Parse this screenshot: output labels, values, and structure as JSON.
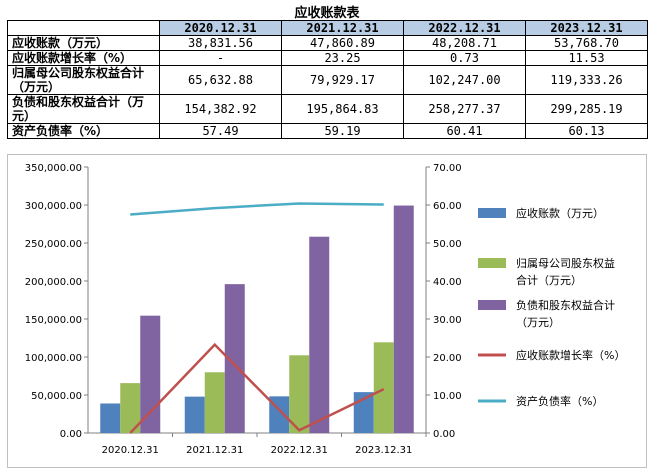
{
  "table": {
    "title": "应收账款表",
    "header": [
      "",
      "2020.12.31",
      "2021.12.31",
      "2022.12.31",
      "2023.12.31"
    ],
    "rows": [
      {
        "label": "应收账款（万元）",
        "values": [
          "38,831.56",
          "47,860.89",
          "48,208.71",
          "53,768.70"
        ]
      },
      {
        "label": "应收账款增长率（%）",
        "values": [
          "-",
          "23.25",
          "0.73",
          "11.53"
        ]
      },
      {
        "label": "归属母公司股东权益合计（万元）",
        "values": [
          "65,632.88",
          "79,929.17",
          "102,247.00",
          "119,333.26"
        ]
      },
      {
        "label": "负债和股东权益合计（万元）",
        "values": [
          "154,382.92",
          "195,864.83",
          "258,277.37",
          "299,285.19"
        ]
      },
      {
        "label": "资产负债率（%）",
        "values": [
          "57.49",
          "59.19",
          "60.41",
          "60.13"
        ]
      }
    ]
  },
  "chart_data": {
    "type": "bar",
    "categories": [
      "2020.12.31",
      "2021.12.31",
      "2022.12.31",
      "2023.12.31"
    ],
    "series": [
      {
        "name": "应收账款（万元）",
        "type": "bar",
        "axis": "left",
        "color": "#4f81bd",
        "values": [
          38831.56,
          47860.89,
          48208.71,
          53768.7
        ]
      },
      {
        "name": "归属母公司股东权益合计（万元）",
        "type": "bar",
        "axis": "left",
        "color": "#9bbb59",
        "values": [
          65632.88,
          79929.17,
          102247.0,
          119333.26
        ]
      },
      {
        "name": "负债和股东权益合计（万元）",
        "type": "bar",
        "axis": "left",
        "color": "#8064a2",
        "values": [
          154382.92,
          195864.83,
          258277.37,
          299285.19
        ]
      },
      {
        "name": "应收账款增长率（%）",
        "type": "line",
        "axis": "right",
        "color": "#c0504d",
        "values": [
          0,
          23.25,
          0.73,
          11.53
        ]
      },
      {
        "name": "资产负债率（%）",
        "type": "line",
        "axis": "right",
        "color": "#4bacc6",
        "values": [
          57.49,
          59.19,
          60.41,
          60.13
        ]
      }
    ],
    "y_left": {
      "min": 0,
      "max": 350000,
      "step": 50000,
      "ticks": [
        "0.00",
        "50,000.00",
        "100,000.00",
        "150,000.00",
        "200,000.00",
        "250,000.00",
        "300,000.00",
        "350,000.00"
      ]
    },
    "y_right": {
      "min": 0,
      "max": 70,
      "step": 10,
      "ticks": [
        "0.00",
        "10.00",
        "20.00",
        "30.00",
        "40.00",
        "50.00",
        "60.00",
        "70.00"
      ]
    },
    "grid": false,
    "legend": {
      "position": "right",
      "entries": [
        {
          "lines": [
            "应收账款（万元）"
          ],
          "color": "#4f81bd",
          "kind": "bar"
        },
        {
          "lines": [
            "归属母公司股东权益",
            "合计（万元）"
          ],
          "color": "#9bbb59",
          "kind": "bar"
        },
        {
          "lines": [
            "负债和股东权益合计",
            "（万元）"
          ],
          "color": "#8064a2",
          "kind": "bar"
        },
        {
          "lines": [
            "应收账款增长率（%）"
          ],
          "color": "#c0504d",
          "kind": "line"
        },
        {
          "lines": [
            "资产负债率（%）"
          ],
          "color": "#4bacc6",
          "kind": "line"
        }
      ]
    }
  }
}
